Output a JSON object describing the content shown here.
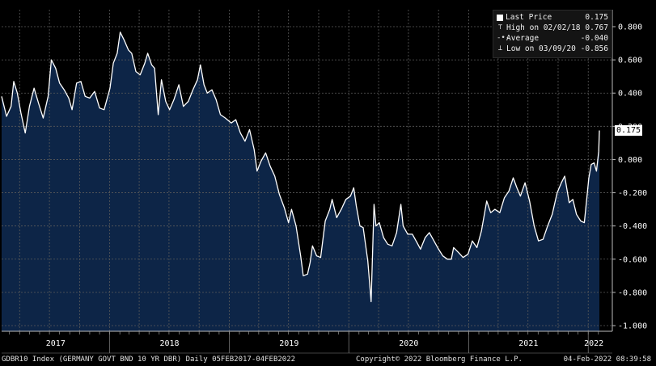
{
  "legend": {
    "items": [
      {
        "label": "Last Price",
        "value": "0.175",
        "icon": "square-icon"
      },
      {
        "label": "High on 02/02/18",
        "value": "0.767",
        "icon": "high-marker-icon"
      },
      {
        "label": "Average",
        "value": "-0.040",
        "icon": "average-marker-icon"
      },
      {
        "label": "Low on 03/09/20",
        "value": "-0.856",
        "icon": "low-marker-icon"
      }
    ]
  },
  "last_price_tag": "0.175",
  "footer": {
    "left": "GDBR10 Index (GERMANY GOVT BND 10 YR DBR)  Daily 05FEB2017-04FEB2022",
    "center": "Copyright© 2022 Bloomberg Finance L.P.",
    "right": "04-Feb-2022 08:39:58"
  },
  "colors": {
    "background": "#000000",
    "area_fill": "#0d2547",
    "line": "#ffffff",
    "grid": "#5a5a5a"
  },
  "chart_data": {
    "type": "area",
    "title": "",
    "xlabel": "",
    "ylabel": "",
    "ylim": [
      -1.0,
      0.8
    ],
    "y_ticks": [
      "0.800",
      "0.600",
      "0.400",
      "0.200",
      "0.000",
      "-0.200",
      "-0.400",
      "-0.600",
      "-0.800",
      "-1.000"
    ],
    "y_tick_values": [
      0.8,
      0.6,
      0.4,
      0.2,
      0.0,
      -0.2,
      -0.4,
      -0.6,
      -0.8,
      -1.0
    ],
    "x_ticks": [
      "2017",
      "2018",
      "2019",
      "2020",
      "2021",
      "2022"
    ],
    "x_range": [
      "2017-02-05",
      "2022-02-04"
    ],
    "grid": true,
    "legend_position": "top-right",
    "series": [
      {
        "name": "GDBR10 Index",
        "points": [
          [
            "2017-02-05",
            0.38
          ],
          [
            "2017-02-20",
            0.26
          ],
          [
            "2017-03-06",
            0.32
          ],
          [
            "2017-03-14",
            0.47
          ],
          [
            "2017-03-25",
            0.4
          ],
          [
            "2017-04-05",
            0.28
          ],
          [
            "2017-04-18",
            0.16
          ],
          [
            "2017-05-01",
            0.32
          ],
          [
            "2017-05-15",
            0.43
          ],
          [
            "2017-05-30",
            0.33
          ],
          [
            "2017-06-12",
            0.25
          ],
          [
            "2017-06-27",
            0.38
          ],
          [
            "2017-07-07",
            0.6
          ],
          [
            "2017-07-20",
            0.55
          ],
          [
            "2017-08-01",
            0.46
          ],
          [
            "2017-08-15",
            0.42
          ],
          [
            "2017-08-29",
            0.37
          ],
          [
            "2017-09-08",
            0.3
          ],
          [
            "2017-09-22",
            0.46
          ],
          [
            "2017-10-05",
            0.47
          ],
          [
            "2017-10-18",
            0.38
          ],
          [
            "2017-11-01",
            0.37
          ],
          [
            "2017-11-16",
            0.41
          ],
          [
            "2017-12-01",
            0.31
          ],
          [
            "2017-12-15",
            0.3
          ],
          [
            "2018-01-02",
            0.43
          ],
          [
            "2018-01-12",
            0.58
          ],
          [
            "2018-01-24",
            0.64
          ],
          [
            "2018-02-02",
            0.767
          ],
          [
            "2018-02-14",
            0.72
          ],
          [
            "2018-02-27",
            0.66
          ],
          [
            "2018-03-09",
            0.64
          ],
          [
            "2018-03-22",
            0.53
          ],
          [
            "2018-04-04",
            0.51
          ],
          [
            "2018-04-18",
            0.58
          ],
          [
            "2018-04-27",
            0.64
          ],
          [
            "2018-05-09",
            0.57
          ],
          [
            "2018-05-18",
            0.55
          ],
          [
            "2018-05-29",
            0.27
          ],
          [
            "2018-06-08",
            0.48
          ],
          [
            "2018-06-21",
            0.35
          ],
          [
            "2018-07-03",
            0.3
          ],
          [
            "2018-07-16",
            0.36
          ],
          [
            "2018-07-31",
            0.45
          ],
          [
            "2018-08-14",
            0.32
          ],
          [
            "2018-08-29",
            0.35
          ],
          [
            "2018-09-12",
            0.42
          ],
          [
            "2018-09-26",
            0.48
          ],
          [
            "2018-10-05",
            0.57
          ],
          [
            "2018-10-16",
            0.45
          ],
          [
            "2018-10-26",
            0.4
          ],
          [
            "2018-11-09",
            0.42
          ],
          [
            "2018-11-22",
            0.36
          ],
          [
            "2018-12-05",
            0.27
          ],
          [
            "2018-12-20",
            0.25
          ],
          [
            "2019-01-07",
            0.22
          ],
          [
            "2019-01-21",
            0.24
          ],
          [
            "2019-02-04",
            0.16
          ],
          [
            "2019-02-18",
            0.11
          ],
          [
            "2019-03-04",
            0.18
          ],
          [
            "2019-03-18",
            0.06
          ],
          [
            "2019-03-27",
            -0.07
          ],
          [
            "2019-04-08",
            -0.01
          ],
          [
            "2019-04-22",
            0.04
          ],
          [
            "2019-05-06",
            -0.04
          ],
          [
            "2019-05-20",
            -0.1
          ],
          [
            "2019-06-03",
            -0.21
          ],
          [
            "2019-06-18",
            -0.29
          ],
          [
            "2019-07-01",
            -0.38
          ],
          [
            "2019-07-10",
            -0.3
          ],
          [
            "2019-07-24",
            -0.4
          ],
          [
            "2019-08-07",
            -0.58
          ],
          [
            "2019-08-15",
            -0.7
          ],
          [
            "2019-08-28",
            -0.69
          ],
          [
            "2019-09-05",
            -0.62
          ],
          [
            "2019-09-12",
            -0.52
          ],
          [
            "2019-09-25",
            -0.58
          ],
          [
            "2019-10-07",
            -0.59
          ],
          [
            "2019-10-21",
            -0.37
          ],
          [
            "2019-11-04",
            -0.3
          ],
          [
            "2019-11-11",
            -0.24
          ],
          [
            "2019-11-25",
            -0.35
          ],
          [
            "2019-12-09",
            -0.3
          ],
          [
            "2019-12-23",
            -0.24
          ],
          [
            "2020-01-06",
            -0.22
          ],
          [
            "2020-01-16",
            -0.17
          ],
          [
            "2020-01-24",
            -0.28
          ],
          [
            "2020-02-04",
            -0.4
          ],
          [
            "2020-02-14",
            -0.41
          ],
          [
            "2020-02-28",
            -0.61
          ],
          [
            "2020-03-09",
            -0.856
          ],
          [
            "2020-03-18",
            -0.27
          ],
          [
            "2020-03-24",
            -0.4
          ],
          [
            "2020-04-03",
            -0.38
          ],
          [
            "2020-04-16",
            -0.47
          ],
          [
            "2020-04-29",
            -0.51
          ],
          [
            "2020-05-12",
            -0.52
          ],
          [
            "2020-05-26",
            -0.44
          ],
          [
            "2020-06-08",
            -0.27
          ],
          [
            "2020-06-15",
            -0.4
          ],
          [
            "2020-06-29",
            -0.45
          ],
          [
            "2020-07-13",
            -0.45
          ],
          [
            "2020-07-27",
            -0.5
          ],
          [
            "2020-08-07",
            -0.54
          ],
          [
            "2020-08-21",
            -0.47
          ],
          [
            "2020-09-03",
            -0.44
          ],
          [
            "2020-09-17",
            -0.49
          ],
          [
            "2020-10-01",
            -0.54
          ],
          [
            "2020-10-14",
            -0.58
          ],
          [
            "2020-10-28",
            -0.6
          ],
          [
            "2020-11-09",
            -0.6
          ],
          [
            "2020-11-16",
            -0.53
          ],
          [
            "2020-12-01",
            -0.56
          ],
          [
            "2020-12-15",
            -0.59
          ],
          [
            "2020-12-30",
            -0.57
          ],
          [
            "2021-01-12",
            -0.49
          ],
          [
            "2021-01-26",
            -0.53
          ],
          [
            "2021-02-09",
            -0.43
          ],
          [
            "2021-02-25",
            -0.25
          ],
          [
            "2021-03-09",
            -0.32
          ],
          [
            "2021-03-22",
            -0.3
          ],
          [
            "2021-04-06",
            -0.32
          ],
          [
            "2021-04-20",
            -0.23
          ],
          [
            "2021-05-04",
            -0.19
          ],
          [
            "2021-05-17",
            -0.11
          ],
          [
            "2021-05-28",
            -0.17
          ],
          [
            "2021-06-08",
            -0.22
          ],
          [
            "2021-06-22",
            -0.14
          ],
          [
            "2021-07-06",
            -0.25
          ],
          [
            "2021-07-20",
            -0.4
          ],
          [
            "2021-08-02",
            -0.49
          ],
          [
            "2021-08-16",
            -0.48
          ],
          [
            "2021-08-30",
            -0.4
          ],
          [
            "2021-09-13",
            -0.33
          ],
          [
            "2021-09-28",
            -0.2
          ],
          [
            "2021-10-11",
            -0.14
          ],
          [
            "2021-10-21",
            -0.1
          ],
          [
            "2021-11-04",
            -0.26
          ],
          [
            "2021-11-15",
            -0.24
          ],
          [
            "2021-11-26",
            -0.33
          ],
          [
            "2021-12-09",
            -0.37
          ],
          [
            "2021-12-20",
            -0.38
          ],
          [
            "2022-01-03",
            -0.11
          ],
          [
            "2022-01-10",
            -0.03
          ],
          [
            "2022-01-19",
            -0.02
          ],
          [
            "2022-01-26",
            -0.07
          ],
          [
            "2022-02-02",
            0.05
          ],
          [
            "2022-02-04",
            0.175
          ]
        ]
      }
    ]
  }
}
